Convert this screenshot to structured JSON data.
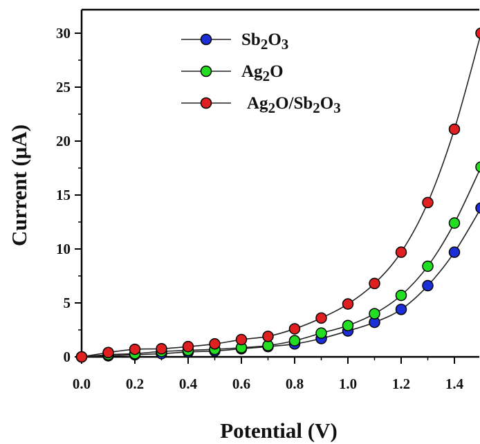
{
  "chart_data": {
    "type": "line",
    "xlabel": "Potential (V)",
    "ylabel": "Current (μA)",
    "xlim": [
      0.0,
      1.5
    ],
    "ylim": [
      0,
      32
    ],
    "xticks": [
      "0.0",
      "0.2",
      "0.4",
      "0.6",
      "0.8",
      "1.0",
      "1.2",
      "1.4"
    ],
    "yticks": [
      "0",
      "5",
      "10",
      "15",
      "20",
      "25",
      "30"
    ],
    "grid": false,
    "legend_position": "top-left",
    "x": [
      0.0,
      0.1,
      0.2,
      0.3,
      0.4,
      0.5,
      0.6,
      0.7,
      0.8,
      0.9,
      1.0,
      1.1,
      1.2,
      1.3,
      1.4,
      1.5
    ],
    "series": [
      {
        "name": "Sb2O3",
        "legend_parts": [
          [
            "Sb",
            false
          ],
          [
            "2",
            true
          ],
          [
            "O",
            false
          ],
          [
            "3",
            true
          ]
        ],
        "color": "#1c2fd6",
        "values": [
          0.0,
          0.1,
          0.2,
          0.3,
          0.45,
          0.55,
          0.75,
          0.95,
          1.2,
          1.7,
          2.4,
          3.2,
          4.4,
          6.6,
          9.7,
          13.8
        ]
      },
      {
        "name": "Ag2O",
        "legend_parts": [
          [
            "Ag",
            false
          ],
          [
            "2",
            true
          ],
          [
            "O",
            false
          ]
        ],
        "color": "#22dd22",
        "values": [
          0.0,
          0.2,
          0.3,
          0.5,
          0.6,
          0.7,
          0.85,
          1.05,
          1.5,
          2.2,
          2.9,
          4.0,
          5.7,
          8.4,
          12.4,
          17.6
        ]
      },
      {
        "name": "Ag2O/Sb2O3",
        "legend_parts": [
          [
            "Ag",
            false
          ],
          [
            "2",
            true
          ],
          [
            "O/Sb",
            false
          ],
          [
            "2",
            true
          ],
          [
            "O",
            false
          ],
          [
            "3",
            true
          ]
        ],
        "color": "#e02020",
        "values": [
          0.0,
          0.4,
          0.7,
          0.75,
          0.95,
          1.2,
          1.6,
          1.9,
          2.6,
          3.6,
          4.9,
          6.8,
          9.7,
          14.3,
          21.1,
          30.0
        ]
      }
    ]
  }
}
